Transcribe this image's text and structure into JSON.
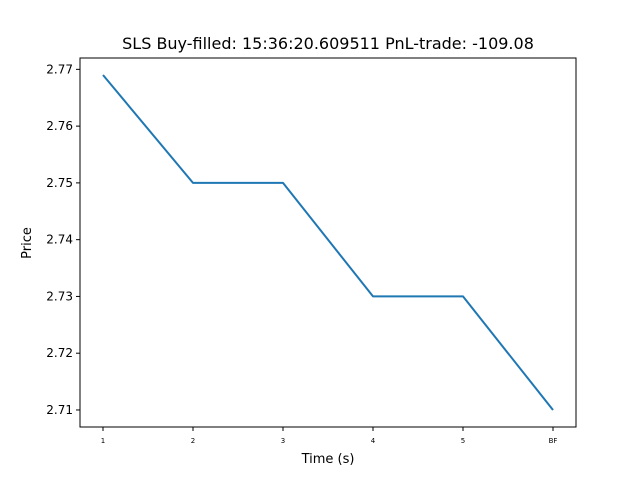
{
  "chart_data": {
    "type": "line",
    "title": "SLS  Buy-filled:  15:36:20.609511  PnL-trade:  -109.08",
    "xlabel": "Time (s)",
    "ylabel": "Price",
    "categories": [
      "1",
      "2",
      "3",
      "4",
      "5",
      "BF"
    ],
    "series": [
      {
        "values": [
          2.769,
          2.75,
          2.75,
          2.73,
          2.73,
          2.71
        ],
        "color": "#1f77b4"
      }
    ],
    "yticks": [
      2.71,
      2.72,
      2.73,
      2.74,
      2.75,
      2.76,
      2.77
    ],
    "ylim": [
      2.707,
      2.772
    ],
    "grid": false,
    "legend": "none"
  }
}
